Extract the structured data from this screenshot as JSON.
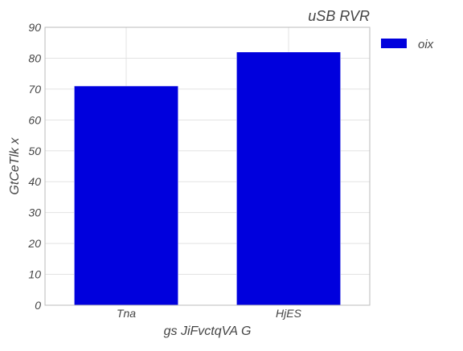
{
  "chart_data": {
    "type": "bar",
    "title": "uSB RVR",
    "xlabel": "gs JiFvctqVA G",
    "ylabel": "GtCeTlk x",
    "categories": [
      "Tna",
      "HjES"
    ],
    "series": [
      {
        "name": "oix",
        "values": [
          71,
          82
        ],
        "color": "#0000dd"
      }
    ],
    "ylim": [
      0,
      90
    ],
    "yticks": [
      0,
      10,
      20,
      30,
      40,
      50,
      60,
      70,
      80,
      90
    ],
    "ytick_labels": [
      "0",
      "10",
      "20",
      "30",
      "40",
      "50",
      "60",
      "70",
      "80",
      "90"
    ],
    "grid": true,
    "legend_position": "outside-top-right"
  }
}
